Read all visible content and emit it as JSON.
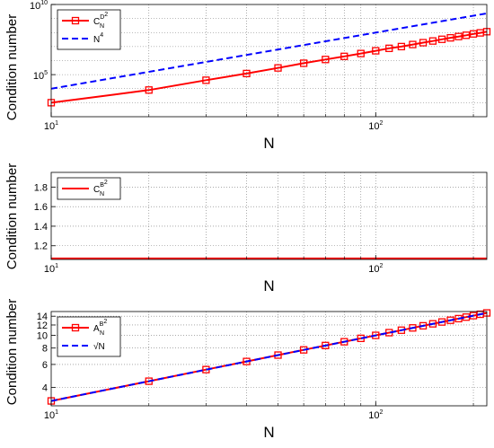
{
  "chart_data": [
    {
      "type": "line",
      "xlabel": "N",
      "ylabel": "Condition number",
      "xscale": "log",
      "yscale": "log",
      "xlim": [
        10,
        220
      ],
      "ylim": [
        100,
        10000000000
      ],
      "xticks": [
        {
          "value": 10,
          "base": "10",
          "exp": "1"
        },
        {
          "value": 100,
          "base": "10",
          "exp": "2"
        }
      ],
      "yticks": [
        {
          "value": 100000,
          "base": "10",
          "exp": "5"
        },
        {
          "value": 10000000000,
          "base": "10",
          "exp": "10"
        }
      ],
      "grid": "dotted",
      "legend_position": "top-left",
      "series": [
        {
          "name": "C_N^{D^2}",
          "name_main": "C",
          "name_sub": "N",
          "name_sup": "D",
          "name_supsup": "2",
          "color": "#ff0000",
          "style": "solid",
          "marker": "square",
          "x": [
            10,
            20,
            30,
            40,
            50,
            60,
            70,
            80,
            90,
            100,
            110,
            120,
            130,
            140,
            150,
            160,
            170,
            180,
            190,
            200,
            210,
            220
          ],
          "y": [
            1000,
            8000,
            40000,
            120000,
            300000,
            650000,
            1200000,
            2000000,
            3200000,
            5000000,
            7500000,
            10000000,
            14000000,
            19000000,
            25000000,
            33000000,
            42000000,
            52000000,
            64000000,
            80000000,
            95000000,
            115000000
          ]
        },
        {
          "name": "N^4",
          "name_main": "N",
          "name_sup": "4",
          "color": "#0000ff",
          "style": "dashed",
          "marker": "none",
          "x": [
            10,
            220
          ],
          "y": [
            10000,
            2340000000
          ]
        }
      ]
    },
    {
      "type": "line",
      "xlabel": "N",
      "ylabel": "Condition number",
      "xscale": "log",
      "yscale": "linear",
      "xlim": [
        10,
        220
      ],
      "ylim": [
        1.06,
        1.95
      ],
      "xticks": [
        {
          "value": 10,
          "base": "10",
          "exp": "1"
        },
        {
          "value": 100,
          "base": "10",
          "exp": "2"
        }
      ],
      "yticks": [
        {
          "value": 1.2,
          "label": "1.2"
        },
        {
          "value": 1.4,
          "label": "1.4"
        },
        {
          "value": 1.6,
          "label": "1.6"
        },
        {
          "value": 1.8,
          "label": "1.8"
        }
      ],
      "grid": "dotted",
      "legend_position": "top-left",
      "series": [
        {
          "name": "C_N^{B^2}",
          "name_main": "C",
          "name_sub": "N",
          "name_sup": "B",
          "name_supsup": "2",
          "color": "#ff0000",
          "style": "solid",
          "marker": "none",
          "x": [
            10,
            220
          ],
          "y": [
            1.07,
            1.07
          ]
        }
      ]
    },
    {
      "type": "line",
      "xlabel": "N",
      "ylabel": "Condition number",
      "xscale": "log",
      "yscale": "log",
      "xlim": [
        10,
        220
      ],
      "ylim": [
        2.9,
        15.2
      ],
      "xticks": [
        {
          "value": 10,
          "base": "10",
          "exp": "1"
        },
        {
          "value": 100,
          "base": "10",
          "exp": "2"
        }
      ],
      "yticks": [
        {
          "value": 4,
          "label": "4"
        },
        {
          "value": 6,
          "label": "6"
        },
        {
          "value": 8,
          "label": "8"
        },
        {
          "value": 10,
          "label": "10"
        },
        {
          "value": 12,
          "label": "12"
        },
        {
          "value": 14,
          "label": "14"
        }
      ],
      "grid": "dotted",
      "legend_position": "top-left",
      "series": [
        {
          "name": "A_N^{B^2}",
          "name_main": "A",
          "name_sub": "N",
          "name_sup": "B",
          "name_supsup": "2",
          "color": "#ff0000",
          "style": "solid",
          "marker": "square",
          "x": [
            10,
            20,
            30,
            40,
            50,
            60,
            70,
            80,
            90,
            100,
            110,
            120,
            130,
            140,
            150,
            160,
            170,
            180,
            190,
            200,
            210,
            220
          ],
          "y": [
            3.16,
            4.47,
            5.48,
            6.32,
            7.07,
            7.75,
            8.37,
            8.94,
            9.49,
            10.0,
            10.49,
            10.95,
            11.4,
            11.83,
            12.25,
            12.65,
            13.04,
            13.42,
            13.78,
            14.14,
            14.49,
            14.83
          ]
        },
        {
          "name": "√N",
          "name_main": "√N",
          "color": "#0000ff",
          "style": "dashed",
          "marker": "none",
          "x": [
            10,
            220
          ],
          "y": [
            3.16,
            14.83
          ]
        }
      ]
    }
  ]
}
